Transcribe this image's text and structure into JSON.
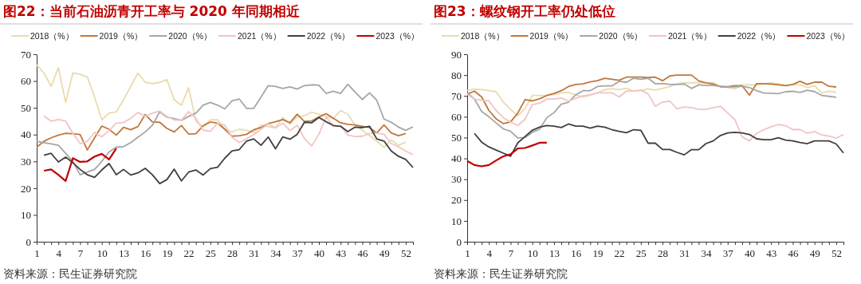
{
  "chart_data": [
    {
      "type": "line",
      "title": "图22：当前石油沥青开工率与 2020 年同期相近",
      "annotations": [
        "资料来源：民生证券研究院"
      ],
      "categories": [
        "1",
        null,
        null,
        "4",
        null,
        null,
        "7",
        null,
        null,
        "10",
        null,
        null,
        "13",
        null,
        null,
        "16",
        null,
        null,
        "19",
        null,
        null,
        "22",
        null,
        null,
        "25",
        null,
        null,
        "28",
        null,
        null,
        "31",
        null,
        null,
        "34",
        null,
        null,
        "37",
        null,
        null,
        "40",
        null,
        null,
        "43",
        null,
        null,
        "46",
        null,
        null,
        "49",
        null,
        null,
        "52",
        null
      ],
      "ylim": [
        0,
        70
      ],
      "yticks": [
        0,
        10,
        20,
        30,
        40,
        50,
        60,
        70
      ],
      "legend": "top",
      "grid": false,
      "marker": "none",
      "line_style": "solid",
      "series": [
        {
          "name": "2018（%）",
          "color": "#e8dcae",
          "values": [
            66,
            63,
            58,
            65,
            52,
            63,
            62.5,
            61.5,
            54,
            45.5,
            48,
            48.5,
            53,
            58,
            63,
            59.5,
            59,
            59.5,
            60.5,
            53,
            51,
            57.5,
            45,
            43,
            45.5,
            45.5,
            42,
            41,
            42,
            41.6,
            40.8,
            43.6,
            43,
            42.5,
            46.4,
            44,
            46.6,
            47,
            48.4,
            47.6,
            46.8,
            46,
            49,
            47.6,
            43.6,
            41.6,
            39.6,
            37.6,
            35.2,
            38,
            36,
            37.1,
            null
          ]
        },
        {
          "name": "2019（%）",
          "color": "#c0773c",
          "values": [
            35.3,
            37.5,
            38.8,
            39.8,
            40.5,
            40.3,
            40,
            34.3,
            38.8,
            43.2,
            42,
            39.8,
            42.7,
            41.8,
            43,
            47.5,
            44.7,
            44.6,
            42.3,
            41,
            43.4,
            40.2,
            40.3,
            43.3,
            44.7,
            44.3,
            42,
            39.4,
            39.6,
            40.1,
            41.8,
            42.6,
            44.1,
            44.8,
            45.6,
            44.4,
            47.6,
            44.9,
            45.1,
            46.6,
            47.8,
            46.1,
            44.4,
            43.8,
            43.6,
            43.1,
            42.6,
            40.6,
            43.6,
            40.6,
            39.6,
            40.4,
            null
          ]
        },
        {
          "name": "2020（%）",
          "color": "#a6a6a6",
          "values": [
            37.5,
            37,
            36.5,
            36,
            33,
            30,
            25,
            26,
            27,
            30,
            33.5,
            35.3,
            35.5,
            37,
            39,
            41,
            43.5,
            48.5,
            46.5,
            46,
            45.3,
            46.8,
            48,
            51,
            52,
            51,
            49.6,
            52.6,
            53.3,
            49.8,
            49.8,
            54,
            58.3,
            58,
            57.2,
            57.8,
            57,
            58.3,
            58.6,
            58.4,
            55.4,
            56.2,
            55.4,
            58.8,
            55.9,
            53.1,
            55.6,
            52.8,
            45.8,
            44.6,
            42.8,
            41.6,
            42.9
          ]
        },
        {
          "name": "2021（%）",
          "color": "#f2c4c4",
          "values": [
            null,
            47,
            45,
            45.6,
            45,
            40.5,
            36.7,
            37.5,
            40.8,
            39.2,
            41.5,
            44.3,
            44.5,
            46,
            48.3,
            46.8,
            48,
            48.8,
            46.8,
            45.5,
            45.3,
            48.6,
            46,
            41.7,
            41.2,
            44.3,
            43.5,
            39,
            37,
            38.5,
            40,
            42,
            44,
            42.5,
            44.3,
            41.5,
            43.5,
            38.6,
            35.7,
            40.1,
            46.6,
            43.1,
            43.3,
            39.8,
            39.3,
            39.4,
            40.4,
            40.6,
            40.1,
            36.7,
            35.4,
            33.9,
            32.5
          ]
        },
        {
          "name": "2022（%）",
          "color": "#404040",
          "values": [
            null,
            32.3,
            33,
            29.8,
            31.6,
            29.5,
            27,
            25,
            24,
            26.8,
            29.2,
            25,
            27,
            24.9,
            25.7,
            27.4,
            25,
            21.7,
            23.2,
            27.1,
            22.7,
            26,
            26.8,
            24.9,
            27.3,
            27.8,
            31.2,
            33.9,
            34.4,
            37.6,
            38.4,
            36,
            39.1,
            34.7,
            39.1,
            38.3,
            40.1,
            44.6,
            44.4,
            46.4,
            44.8,
            43.4,
            43.1,
            41.1,
            42.8,
            42.6,
            43.1,
            38.4,
            37.6,
            33.9,
            31.9,
            30.7,
            27.7
          ]
        },
        {
          "name": "2023（%）",
          "color": "#c00000",
          "values": [
            null,
            26.5,
            27,
            25,
            22.7,
            31.2,
            29.8,
            30,
            31.8,
            32.8,
            30.7,
            34.8,
            null,
            null,
            null,
            null,
            null,
            null,
            null,
            null,
            null,
            null,
            null,
            null,
            null,
            null,
            null,
            null,
            null,
            null,
            null,
            null,
            null,
            null,
            null,
            null,
            null,
            null,
            null,
            null,
            null,
            null,
            null,
            null,
            null,
            null,
            null,
            null,
            null,
            null,
            null,
            null,
            null
          ]
        }
      ]
    },
    {
      "type": "line",
      "title": "图23：螺纹钢开工率仍处低位",
      "annotations": [
        "资料来源：民生证券研究院"
      ],
      "categories": [
        "1",
        null,
        null,
        "4",
        null,
        null,
        "7",
        null,
        null,
        "10",
        null,
        null,
        "13",
        null,
        null,
        "16",
        null,
        null,
        "19",
        null,
        null,
        "22",
        null,
        null,
        "25",
        null,
        null,
        "28",
        null,
        null,
        "31",
        null,
        null,
        "34",
        null,
        null,
        "37",
        null,
        null,
        "40",
        null,
        null,
        "43",
        null,
        null,
        "46",
        null,
        null,
        "49",
        null,
        null,
        "52",
        null
      ],
      "ylim": [
        0,
        90
      ],
      "yticks": [
        0,
        10,
        20,
        30,
        40,
        50,
        60,
        70,
        80,
        90
      ],
      "legend": "top",
      "grid": false,
      "marker": "none",
      "line_style": "solid",
      "series": [
        {
          "name": "2018（%）",
          "color": "#e8dcae",
          "values": [
            72.5,
            73.3,
            73,
            72.5,
            72,
            67,
            63.5,
            60.5,
            64,
            70.2,
            70.2,
            70.3,
            70.6,
            71.5,
            71.7,
            70.5,
            69.5,
            70.3,
            71.5,
            73,
            73.5,
            73,
            73.7,
            72.3,
            72.5,
            73.4,
            72.8,
            73.6,
            74.4,
            75.9,
            76.3,
            76.3,
            76.3,
            76.3,
            76.3,
            74.6,
            74,
            73.4,
            75.3,
            75.3,
            75.3,
            75.8,
            76.3,
            75.8,
            75,
            75.5,
            75.3,
            74,
            74.9,
            71.4,
            72.3,
            71.7,
            null
          ]
        },
        {
          "name": "2019（%）",
          "color": "#c0773c",
          "values": [
            70.8,
            72.3,
            69.5,
            63,
            59,
            56.7,
            57.5,
            61.8,
            68.2,
            67.6,
            68.6,
            70.2,
            71.2,
            72.5,
            74.5,
            75.5,
            75.8,
            76.7,
            77.3,
            78.5,
            78,
            77.5,
            79,
            79,
            79,
            78.8,
            79,
            77.3,
            79.6,
            80,
            80,
            80,
            77.2,
            76.3,
            75.7,
            74.4,
            74.4,
            74.9,
            74.9,
            70.4,
            75.9,
            75.9,
            75.7,
            75.3,
            74.9,
            75.5,
            77,
            75.5,
            76.6,
            76.6,
            74.6,
            74.3,
            null
          ]
        },
        {
          "name": "2020（%）",
          "color": "#a6a6a6",
          "values": [
            71.5,
            68.5,
            62.5,
            60,
            57,
            54.2,
            53,
            49.8,
            50,
            52.5,
            54,
            59.5,
            62,
            66,
            67,
            70.5,
            72.5,
            72.5,
            74.5,
            74.8,
            74.8,
            77,
            76.5,
            78.5,
            78,
            78.5,
            75.8,
            76,
            75.5,
            75.5,
            75.7,
            73.6,
            75.3,
            75,
            75,
            74.6,
            74.3,
            74.4,
            74.6,
            74,
            72.5,
            71.4,
            71.3,
            71.1,
            72,
            72.2,
            71.7,
            72.7,
            72.1,
            70.2,
            69.8,
            69.4,
            null
          ]
        },
        {
          "name": "2021（%）",
          "color": "#f2c4c4",
          "values": [
            70.8,
            68.5,
            67.8,
            67.7,
            63,
            59.5,
            57.5,
            55.8,
            58.8,
            65.8,
            66.5,
            68.5,
            68.5,
            69,
            67.5,
            68.8,
            70,
            70.5,
            71.5,
            71.5,
            71.5,
            69.5,
            72.3,
            72.3,
            72.8,
            71,
            65,
            67,
            67.5,
            63.8,
            64.7,
            64.4,
            63.5,
            63.5,
            64.4,
            65,
            61.8,
            58.6,
            50.3,
            48.4,
            52,
            53.8,
            55.1,
            56.3,
            55.7,
            53.8,
            53.9,
            52,
            52.9,
            51.3,
            50.7,
            49.7,
            51.5
          ]
        },
        {
          "name": "2022（%）",
          "color": "#404040",
          "values": [
            null,
            52,
            47.8,
            45.5,
            44,
            42.5,
            41,
            47.5,
            50.5,
            53.5,
            55,
            55.8,
            55.5,
            54.8,
            56.5,
            55.5,
            55.5,
            54.5,
            55.5,
            55,
            53.8,
            53,
            52.3,
            53.8,
            53.5,
            47.3,
            47.3,
            44.3,
            44.3,
            42.9,
            41.7,
            44.2,
            44.2,
            47.1,
            48.4,
            51,
            52.2,
            52.5,
            52.2,
            51.5,
            49.4,
            49,
            49,
            49.9,
            48.8,
            48.4,
            47.6,
            47.1,
            48.4,
            48.4,
            48.4,
            46.9,
            42.6
          ]
        },
        {
          "name": "2023（%）",
          "color": "#c00000",
          "values": [
            38.8,
            36.8,
            36.2,
            36.8,
            39,
            41,
            42,
            44.8,
            45,
            46.2,
            47.5,
            47.5,
            null,
            null,
            null,
            null,
            null,
            null,
            null,
            null,
            null,
            null,
            null,
            null,
            null,
            null,
            null,
            null,
            null,
            null,
            null,
            null,
            null,
            null,
            null,
            null,
            null,
            null,
            null,
            null,
            null,
            null,
            null,
            null,
            null,
            null,
            null,
            null,
            null,
            null,
            null,
            null,
            null
          ]
        }
      ]
    }
  ]
}
